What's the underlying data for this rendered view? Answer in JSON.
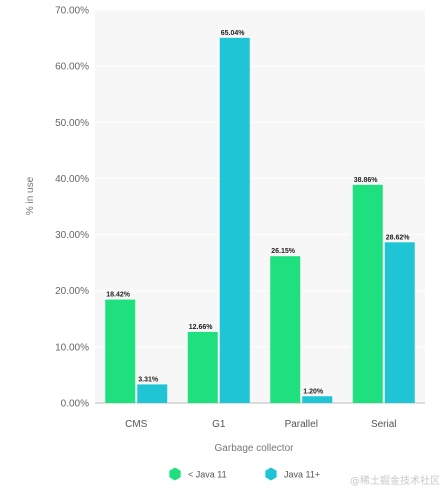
{
  "chart_data": {
    "type": "bar",
    "categories": [
      "CMS",
      "G1",
      "Parallel",
      "Serial"
    ],
    "series": [
      {
        "name": "< Java 11",
        "color": "#1fe07f",
        "values": [
          18.42,
          12.66,
          26.15,
          38.86
        ],
        "labels": [
          "18.42%",
          "12.66%",
          "26.15%",
          "38.86%"
        ]
      },
      {
        "name": "Java 11+",
        "color": "#1fc5d4",
        "values": [
          3.31,
          65.04,
          1.2,
          28.62
        ],
        "labels": [
          "3.31%",
          "65.04%",
          "1.20%",
          "28.62%"
        ]
      }
    ],
    "ylim": [
      0,
      70
    ],
    "yticks": [
      0,
      10,
      20,
      30,
      40,
      50,
      60,
      70
    ],
    "ytick_labels": [
      "0.00%",
      "10.00%",
      "20.00%",
      "30.00%",
      "40.00%",
      "50.00%",
      "60.00%",
      "70.00%"
    ],
    "xlabel": "Garbage collector",
    "ylabel": "% in use",
    "legend_position": "bottom",
    "grid": true,
    "plot_background": "#f7f7f7"
  },
  "watermark": "@稀土掘金技术社区"
}
